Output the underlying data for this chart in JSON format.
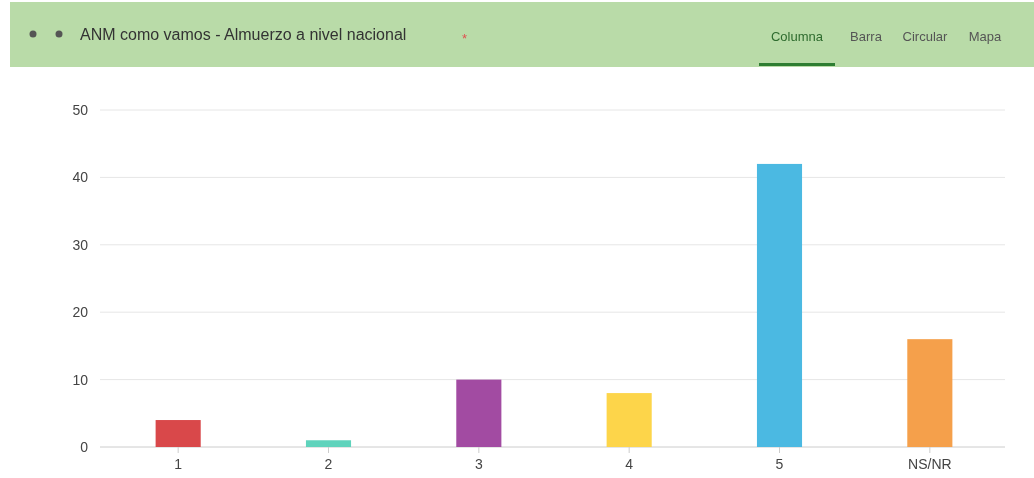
{
  "chart_data": {
    "type": "bar",
    "title": "ANM como vamos - Almuerzo a nivel nacional",
    "annotations": [
      "*",
      "Columna",
      "Barra",
      "Circular",
      "Mapa"
    ],
    "categories": [
      "1",
      "2",
      "3",
      "4",
      "5",
      "NS/NR"
    ],
    "values": [
      4,
      1,
      10,
      8,
      42,
      16
    ],
    "colors": [
      "#d9484a",
      "#5fd3bc",
      "#a24ba2",
      "#fdd54a",
      "#4bb9e2",
      "#f5a04b"
    ],
    "ylim": [
      0,
      50
    ],
    "yticks": [
      0,
      10,
      20,
      30,
      40,
      50
    ],
    "grid": "y"
  }
}
